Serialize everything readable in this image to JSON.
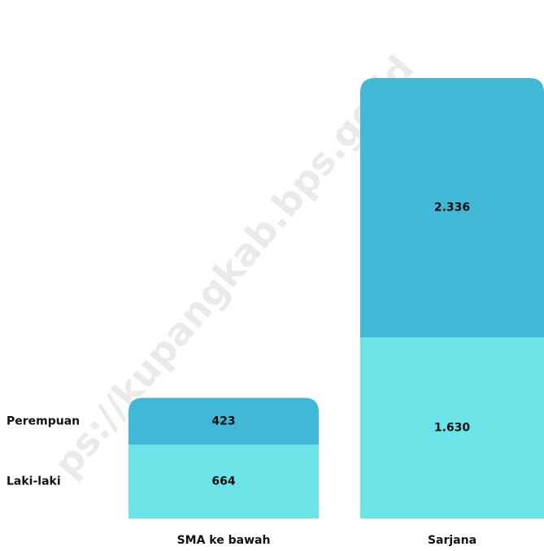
{
  "chart_data": {
    "type": "stacked_bar",
    "categories": [
      "SMA ke bawah",
      "Sarjana"
    ],
    "series": [
      {
        "name": "Laki-laki",
        "color": "#6ce3e6",
        "values": [
          664,
          1630
        ],
        "value_labels": [
          "664",
          "1.630"
        ]
      },
      {
        "name": "Perempuan",
        "color": "#41b8d5",
        "values": [
          423,
          2336
        ],
        "value_labels": [
          "423",
          "2.336"
        ]
      }
    ],
    "watermark": "ps://kupangkab.bps.go.id"
  }
}
